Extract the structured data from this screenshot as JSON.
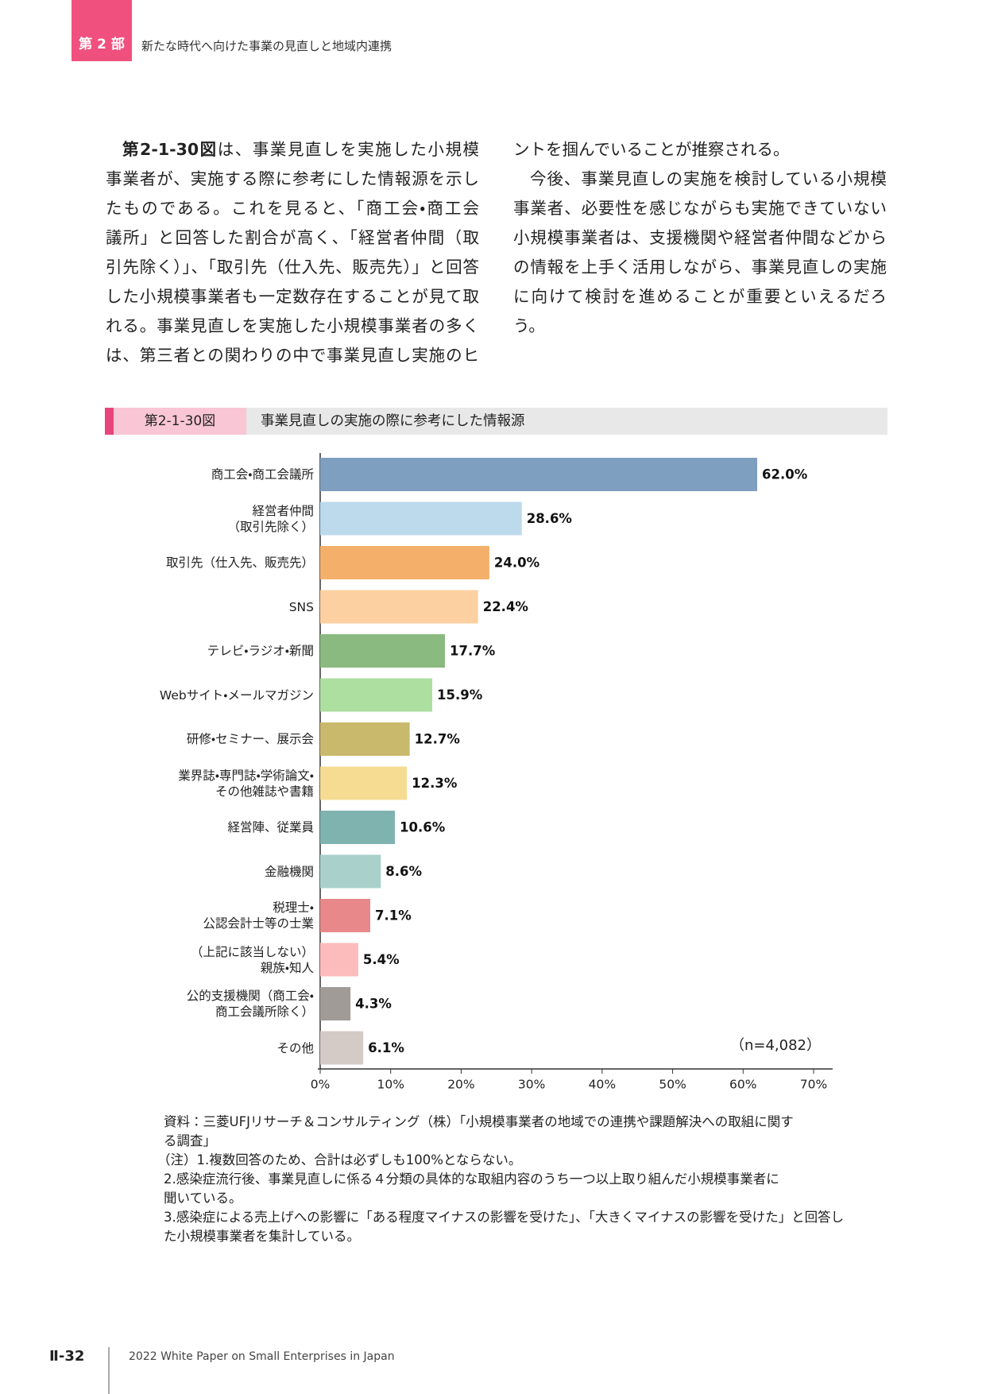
{
  "header": {
    "part": "第 2 部",
    "title": "新たな時代へ向けた事業の見直しと地域内連携"
  },
  "body": {
    "figure_ref": "第2-1-30図",
    "left_lines": [
      "は、事業見直しを実施した小規模",
      "事業者が、実施する際に参考にした情報源を示し",
      "たものである。これを見ると、「商工会・商工会",
      "議所」と回答した割合が高く、「経営者仲間（取",
      "引先除く）」、「取引先（仕入先、販売先）」と回答",
      "した小規模事業者も一定数存在することが見て取",
      "れる。事業見直しを実施した小規模事業者の多く",
      "は、第三者との関わりの中で事業見直し実施のヒ"
    ],
    "right_lines": [
      "ントを掴んでいることが推察される。",
      "今後、事業見直しの実施を検討している小規模",
      "事業者、必要性を感じながらも実施できていない",
      "小規模事業者は、支援機関や経営者仲間などから",
      "の情報を上手く活用しながら、事業見直しの実施",
      "に向けて検討を進めることが重要といえるだろ",
      "う。"
    ]
  },
  "chart_data": {
    "type": "bar",
    "orientation": "horizontal",
    "figure_label": "第2-1-30図",
    "title": "事業見直しの実施の際に参考にした情報源",
    "categories": [
      "商工会・商工会議所",
      "経営者仲間\n（取引先除く）",
      "取引先（仕入先、販売先）",
      "SNS",
      "テレビ・ラジオ・新聞",
      "Webサイト・メールマガジン",
      "研修・セミナー、展示会",
      "業界誌・専門誌・学術論文・\nその他雑誌や書籍",
      "経営陣、従業員",
      "金融機関",
      "税理士・\n公認会計士等の士業",
      "（上記に該当しない）\n親族・知人",
      "公的支援機関（商工会・\n商工会議所除く）",
      "その他"
    ],
    "values": [
      62.0,
      28.6,
      24.0,
      22.4,
      17.7,
      15.9,
      12.7,
      12.3,
      10.6,
      8.6,
      7.1,
      5.4,
      4.3,
      6.1
    ],
    "value_labels": [
      "62.0%",
      "28.6%",
      "24.0%",
      "22.4%",
      "17.7%",
      "15.9%",
      "12.7%",
      "12.3%",
      "10.6%",
      "8.6%",
      "7.1%",
      "5.4%",
      "4.3%",
      "6.1%"
    ],
    "colors": [
      "#7f9fc0",
      "#bcdaec",
      "#f4b06a",
      "#fdd0a2",
      "#8aba80",
      "#addfa0",
      "#c9b96c",
      "#f5dc92",
      "#7fb3b0",
      "#a9d0ca",
      "#e8888a",
      "#fdbcbc",
      "#a19b97",
      "#d4cac6"
    ],
    "xlim": [
      0,
      70
    ],
    "xticks": [
      {
        "value": 0,
        "label": "0%"
      },
      {
        "value": 10,
        "label": "10%"
      },
      {
        "value": 20,
        "label": "20%"
      },
      {
        "value": 30,
        "label": "30%"
      },
      {
        "value": 40,
        "label": "40%"
      },
      {
        "value": 50,
        "label": "50%"
      },
      {
        "value": 60,
        "label": "60%"
      },
      {
        "value": 70,
        "label": "70%"
      }
    ],
    "annotation": "（n=4,082）"
  },
  "notes": [
    "資料：三菱UFJリサーチ＆コンサルティング（株）「小規模事業者の地域での連携や課題解決への取組に関す",
    "る調査」",
    "（注）1.複数回答のため、合計は必ずしも100%とならない。",
    "2.感染症流行後、事業見直しに係る４分類の具体的な取組内容のうち一つ以上取り組んだ小規模事業者に",
    "聞いている。",
    "3.感染症による売上げへの影響に「ある程度マイナスの影響を受けた」、「大きくマイナスの影響を受けた」と回答し",
    "た小規模事業者を集計している。"
  ],
  "footer": {
    "page": "Ⅱ-32",
    "publication": "2022 White Paper on Small Enterprises in Japan"
  }
}
